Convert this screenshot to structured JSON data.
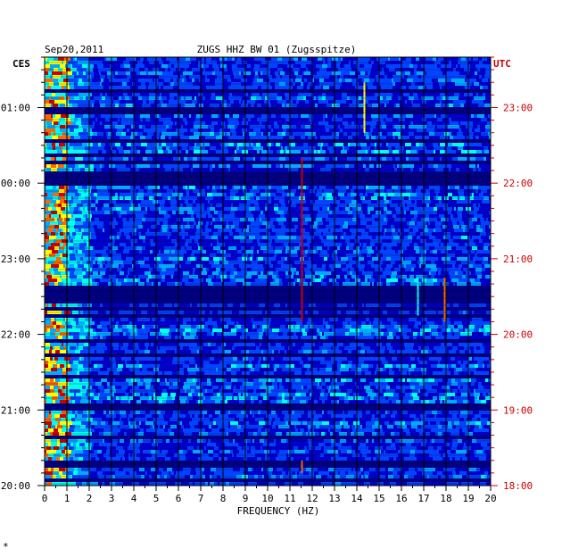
{
  "chart_data": {
    "type": "heatmap",
    "title": "ZUGS HHZ BW 01 (Zugsspitze)",
    "date": "Sep20,2011",
    "left_zone": "CES",
    "right_zone": "UTC",
    "xlabel": "FREQUENCY (HZ)",
    "xlim": [
      0,
      20
    ],
    "x_ticks": [
      "0",
      "1",
      "2",
      "3",
      "4",
      "5",
      "6",
      "7",
      "8",
      "9",
      "10",
      "11",
      "12",
      "13",
      "14",
      "15",
      "16",
      "17",
      "18",
      "19",
      "20"
    ],
    "time_range_ces": [
      "20:00",
      "01:40"
    ],
    "left_ticks": [
      "01:00",
      "00:00",
      "23:00",
      "22:00",
      "21:00",
      "20:00"
    ],
    "right_ticks": [
      "23:00",
      "22:00",
      "21:00",
      "20:00",
      "19:00",
      "18:00"
    ],
    "grid": true,
    "colors": {
      "background": "#0000cc",
      "grid": "#000000",
      "right_axis": "#cc0000",
      "left_axis": "#000000",
      "scale": [
        "#000080",
        "#0000cc",
        "#0044ff",
        "#00aaff",
        "#00ffee",
        "#ffff00",
        "#ff6600",
        "#cc0000"
      ]
    },
    "quiet_bands_ces": [
      [
        "00:00",
        "00:12"
      ],
      [
        "22:28",
        "22:40"
      ],
      [
        "21:00",
        "21:06"
      ]
    ],
    "energetic_band_hz": [
      0,
      1
    ]
  },
  "footer_mark": "*"
}
